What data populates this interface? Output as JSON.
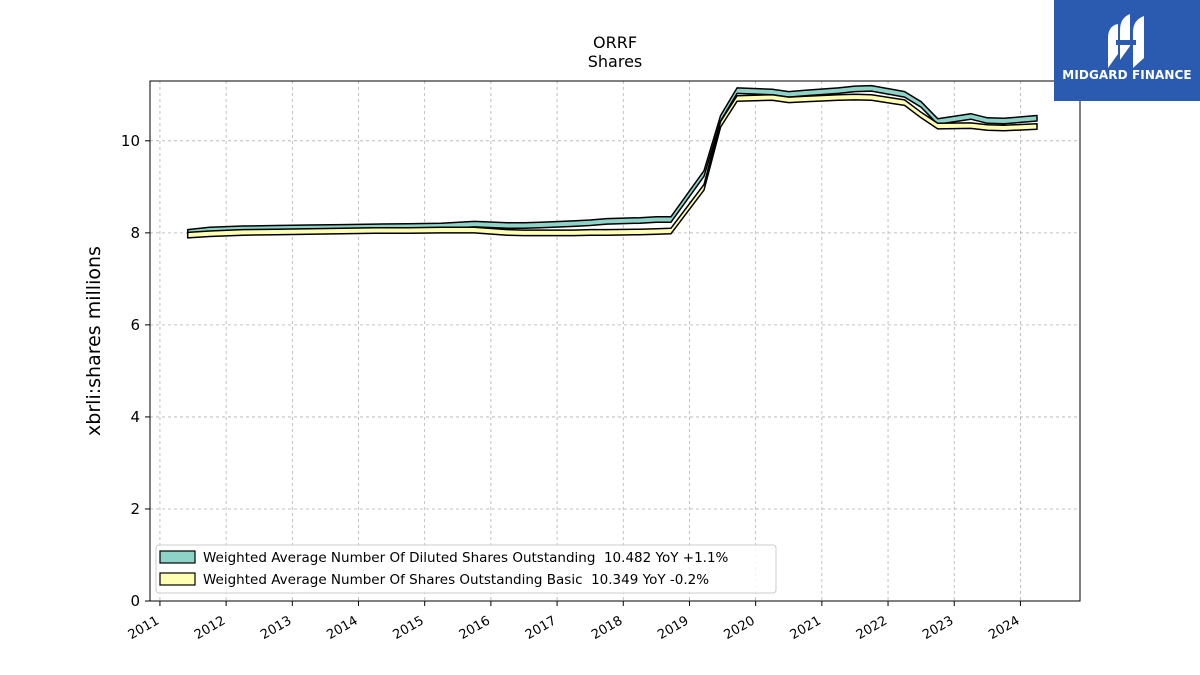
{
  "chart_data": {
    "type": "area",
    "title": "ORRF",
    "subtitle": "Shares",
    "ylabel": "xbrli:shares millions",
    "xlabel": "",
    "ylim": [
      0,
      11.3
    ],
    "xlim": [
      2010.85,
      2024.9
    ],
    "y_ticks": [
      0,
      2,
      4,
      6,
      8,
      10
    ],
    "x_ticks": [
      "2011",
      "2012",
      "2013",
      "2014",
      "2015",
      "2016",
      "2017",
      "2018",
      "2019",
      "2020",
      "2021",
      "2022",
      "2023",
      "2024"
    ],
    "grid": true,
    "legend_position": "bottom-left",
    "series": [
      {
        "name": "Weighted Average Number Of Diluted Shares Outstanding  10.482 YoY +1.1%",
        "color": "#8dd3c7",
        "x": [
          2011.42,
          2011.75,
          2012.25,
          2012.75,
          2013.25,
          2013.75,
          2014.25,
          2014.75,
          2015.25,
          2015.75,
          2016.25,
          2016.5,
          2016.75,
          2017.25,
          2017.5,
          2017.75,
          2018.25,
          2018.5,
          2018.72,
          2019.22,
          2019.47,
          2019.72,
          2020.25,
          2020.5,
          2020.75,
          2021.25,
          2021.5,
          2021.75,
          2022.25,
          2022.5,
          2022.75,
          2023.25,
          2023.5,
          2023.75,
          2024.25
        ],
        "values": [
          8.07,
          8.12,
          8.15,
          8.16,
          8.17,
          8.18,
          8.19,
          8.2,
          8.21,
          8.25,
          8.22,
          8.22,
          8.23,
          8.26,
          8.28,
          8.31,
          8.33,
          8.35,
          8.35,
          9.35,
          10.55,
          11.15,
          11.12,
          11.07,
          11.1,
          11.15,
          11.19,
          11.2,
          11.07,
          10.85,
          10.48,
          10.59,
          10.5,
          10.49,
          10.55
        ]
      },
      {
        "name": "Weighted Average Number Of Shares Outstanding Basic  10.349 YoY -0.2%",
        "color": "#ffffb3",
        "x": [
          2011.42,
          2011.75,
          2012.25,
          2012.75,
          2013.25,
          2013.75,
          2014.25,
          2014.75,
          2015.25,
          2015.75,
          2016.25,
          2016.5,
          2016.75,
          2017.25,
          2017.5,
          2017.75,
          2018.25,
          2018.5,
          2018.72,
          2019.22,
          2019.47,
          2019.72,
          2020.25,
          2020.5,
          2020.75,
          2021.25,
          2021.5,
          2021.75,
          2022.25,
          2022.5,
          2022.75,
          2023.25,
          2023.5,
          2023.75,
          2024.25
        ],
        "values": [
          8.01,
          8.04,
          8.07,
          8.08,
          8.09,
          8.1,
          8.11,
          8.11,
          8.12,
          8.12,
          8.07,
          8.06,
          8.06,
          8.06,
          8.07,
          8.07,
          8.08,
          8.09,
          8.1,
          9.05,
          10.42,
          10.98,
          11.0,
          10.95,
          10.97,
          11.0,
          11.01,
          11.0,
          10.89,
          10.62,
          10.38,
          10.39,
          10.35,
          10.34,
          10.37
        ]
      }
    ]
  },
  "logo": {
    "text": "MIDGARD FINANCE",
    "icon": "midgard-logo-mark",
    "bg_color": "#2a5bb0"
  }
}
